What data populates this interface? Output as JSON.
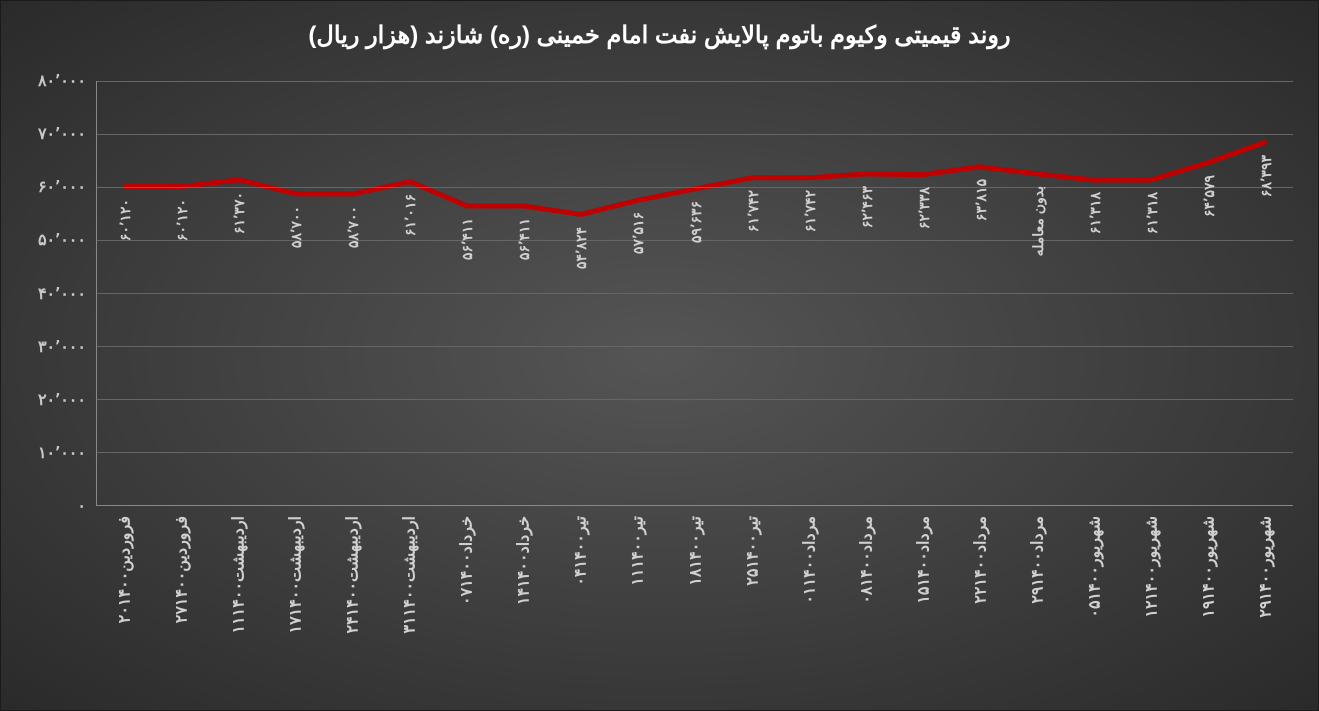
{
  "chart": {
    "type": "line",
    "title": "روند قیمیتی وکیوم باتوم پالایش نفت امام خمینی (ره) شازند (هزار ریال)",
    "title_fontsize": 24,
    "title_color": "#ffffff",
    "background_gradient": {
      "center": "#555555",
      "edge": "#2a2a2a"
    },
    "line_color": "#c00000",
    "line_width": 5,
    "grid_color": "#666666",
    "axis_color": "#888888",
    "label_color": "#c8c8c8",
    "data_label_color": "#d0d0d0",
    "yaxis": {
      "min": 0,
      "max": 80000,
      "step": 10000,
      "ticks": [
        "۰",
        "۱۰٬۰۰۰",
        "۲۰٬۰۰۰",
        "۳۰٬۰۰۰",
        "۴۰٬۰۰۰",
        "۵۰٬۰۰۰",
        "۶۰٬۰۰۰",
        "۷۰٬۰۰۰",
        "۸۰٬۰۰۰"
      ]
    },
    "categories": [
      "۲۰فروردین۱۴۰۰",
      "۲۷فروردین۱۴۰۰",
      "۱۱اردیبهشت۱۴۰۰",
      "۱۷اردیبهشت۱۴۰۰",
      "۲۴اردیبهشت۱۴۰۰",
      "۳۱اردیبهشت۱۴۰۰",
      "۰۷خرداد۱۴۰۰",
      "۱۴خرداد۱۴۰۰",
      "۰۴تیر۱۴۰۰",
      "۱۱تیر۱۴۰۰",
      "۱۸تیر۱۴۰۰",
      "۲۵تیر۱۴۰۰",
      "۰۱مرداد۱۴۰۰",
      "۰۸مرداد۱۴۰۰",
      "۱۵مرداد۱۴۰۰",
      "۲۲مرداد۱۴۰۰",
      "۲۹مرداد۱۴۰۰",
      "۰۵شهریور۱۴۰۰",
      "۱۲شهریور۱۴۰۰",
      "۱۹شهریور۱۴۰۰",
      "۲۹شهریور۱۴۰۰"
    ],
    "values": [
      60120,
      60120,
      61370,
      58700,
      58700,
      61016,
      56411,
      56411,
      54824,
      57516,
      59636,
      61742,
      61742,
      62463,
      62338,
      63815,
      62500,
      61318,
      61318,
      64579,
      68393
    ],
    "data_labels": [
      "۶۰٬۱۲۰",
      "۶۰٬۱۲۰",
      "۶۱٬۳۷۰",
      "۵۸٬۷۰۰",
      "۵۸٬۷۰۰",
      "۶۱٬۰۱۶",
      "۵۶٬۴۱۱",
      "۵۶٬۴۱۱",
      "۵۴٬۸۲۴",
      "۵۷٬۵۱۶",
      "۵۹٬۶۳۶",
      "۶۱٬۷۴۲",
      "۶۱٬۷۴۲",
      "۶۲٬۴۶۳",
      "۶۲٬۳۳۸",
      "۶۳٬۸۱۵",
      "بدون معامله",
      "۶۱٬۳۱۸",
      "۶۱٬۳۱۸",
      "۶۴٬۵۷۹",
      "۶۸٬۳۹۳"
    ]
  }
}
